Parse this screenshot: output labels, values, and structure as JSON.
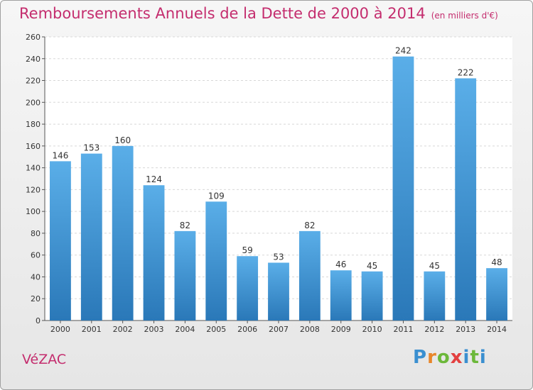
{
  "title": "Remboursements Annuels de la Dette de 2000 à 2014",
  "subtitle": "(en milliers d'€)",
  "commune": "VéZAC",
  "logo": {
    "letters": [
      "P",
      "r",
      "o",
      "x",
      "i",
      "t",
      "i"
    ],
    "colors": [
      "#3a8fd0",
      "#e8862a",
      "#6cb83a",
      "#e34040",
      "#3a8fd0",
      "#6cb83a",
      "#3a8fd0"
    ]
  },
  "chart_data": {
    "type": "bar",
    "categories": [
      "2000",
      "2001",
      "2002",
      "2003",
      "2004",
      "2005",
      "2006",
      "2007",
      "2008",
      "2009",
      "2010",
      "2011",
      "2012",
      "2013",
      "2014"
    ],
    "values": [
      146,
      153,
      160,
      124,
      82,
      109,
      59,
      53,
      82,
      46,
      45,
      242,
      45,
      222,
      48
    ],
    "ylim": [
      0,
      260
    ],
    "yticks": [
      0,
      20,
      40,
      60,
      80,
      100,
      120,
      140,
      160,
      180,
      200,
      220,
      240,
      260
    ],
    "grid": true,
    "bar_color_top": "#5aaee8",
    "bar_color_bottom": "#2a78b8"
  }
}
